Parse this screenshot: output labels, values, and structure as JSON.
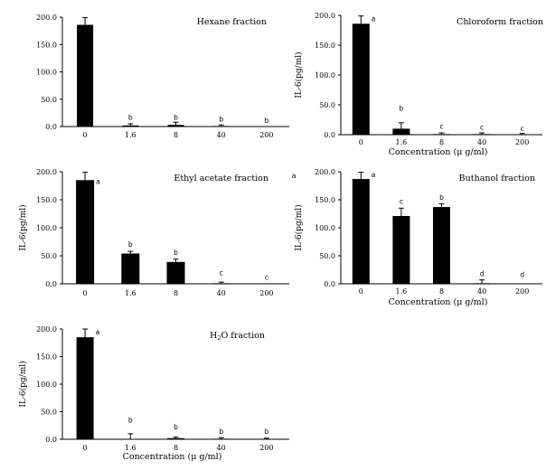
{
  "colors": {
    "bar": "#000000",
    "axis": "#000000",
    "background": "#ffffff"
  },
  "chart_data": [
    {
      "type": "bar",
      "title": "Hexane fraction",
      "xlabel": "",
      "ylabel": "",
      "ylim": [
        0,
        200
      ],
      "yticks": [
        "0.0",
        "50.0",
        "100.0",
        "150.0",
        "200.0"
      ],
      "categories": [
        "0",
        "1.6",
        "8",
        "40",
        "200"
      ],
      "values": [
        186,
        2,
        3,
        1,
        0
      ],
      "errors": [
        13,
        3,
        5,
        2,
        0
      ],
      "letters": [
        "",
        "b",
        "b",
        "b",
        "b"
      ],
      "letter_values": [
        0,
        12,
        12,
        9,
        7
      ],
      "show_zero_bar": false
    },
    {
      "type": "bar",
      "title": "Chloroform fraction",
      "xlabel": "Concentration (μ g/ml)",
      "ylabel": "IL-6(pg/ml)",
      "ylim": [
        0,
        200
      ],
      "yticks": [
        "0.0",
        "50.0",
        "100.0",
        "150.0",
        "200.0"
      ],
      "categories": [
        "0",
        "1.6",
        "8",
        "40",
        "200"
      ],
      "values": [
        186,
        10,
        1,
        1,
        0
      ],
      "errors": [
        13,
        10,
        2,
        2,
        2
      ],
      "letters": [
        "a",
        "b",
        "c",
        "c",
        "c"
      ],
      "letter_values": [
        190,
        40,
        10,
        8,
        6
      ],
      "show_zero_bar": false
    },
    {
      "type": "bar",
      "title": "Ethyl acetate fraction",
      "xlabel": "",
      "ylabel": "IL-6(pg/ml)",
      "ylim": [
        0,
        200
      ],
      "yticks": [
        "0.0",
        "50.0",
        "100.0",
        "150.0",
        "200.0"
      ],
      "categories": [
        "0",
        "1.6",
        "8",
        "40",
        "200"
      ],
      "values": [
        185,
        54,
        39,
        1,
        0
      ],
      "errors": [
        14,
        4,
        5,
        2,
        0
      ],
      "letters": [
        "a",
        "b",
        "b",
        "c",
        "c"
      ],
      "letter_values": [
        178,
        66,
        52,
        15,
        7
      ],
      "show_zero_bar": false
    },
    {
      "type": "bar",
      "title": "Buthanol fraction",
      "xlabel": "Concentration (μ g/ml)",
      "ylabel": "IL-6(pg/ml)",
      "ylim": [
        0,
        200
      ],
      "yticks": [
        "0.0",
        "50.0",
        "100.0",
        "150.0",
        "200.0"
      ],
      "categories": [
        "0",
        "1.6",
        "8",
        "40",
        "200"
      ],
      "values": [
        187,
        121,
        137,
        1,
        0
      ],
      "errors": [
        12,
        14,
        6,
        6,
        0
      ],
      "letters": [
        "a",
        "c",
        "b",
        "d",
        "d"
      ],
      "letter_values": [
        190,
        143,
        150,
        14,
        12
      ],
      "outside_letter": "a",
      "show_zero_bar": false
    },
    {
      "type": "bar",
      "title": "H2O fraction",
      "xlabel": "Concentration (μ g/ml)",
      "ylabel": "IL-6(pg/ml)",
      "ylim": [
        0,
        200
      ],
      "yticks": [
        "0.0",
        "50.0",
        "100.0",
        "150.0",
        "200.0"
      ],
      "categories": [
        "0",
        "1.6",
        "8",
        "40",
        "200"
      ],
      "values": [
        185,
        0,
        2,
        1,
        0
      ],
      "errors": [
        15,
        10,
        2,
        2,
        2
      ],
      "letters": [
        "a",
        "b",
        "b",
        "b",
        "b"
      ],
      "letter_values": [
        190,
        30,
        18,
        10,
        10
      ],
      "show_zero_bar": false
    }
  ]
}
